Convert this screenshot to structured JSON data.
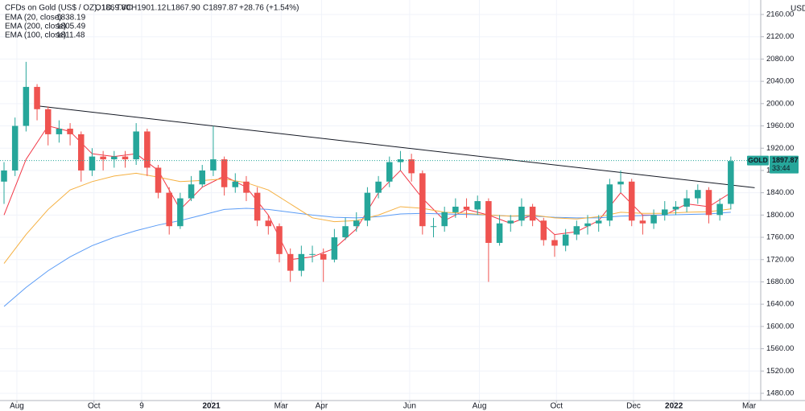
{
  "chart_data": {
    "type": "candlestick",
    "header": {
      "title": "CFDs on Gold (US$ / OZ), 1D, TVC",
      "open": "O1869.80",
      "high": "H1901.12",
      "low": "L1867.90",
      "close": "C1897.87",
      "change": "+28.76 (+1.54%)"
    },
    "currency": "USD",
    "symbol": "GOLD",
    "last_price": 1897.87,
    "countdown": "33:44",
    "xlim": [
      -2.2,
      412.3
    ],
    "ylim": [
      1467,
      2186
    ],
    "grid": true,
    "up_color": "#26a69a",
    "down_color": "#ef5350",
    "xticks": [
      {
        "value": 7,
        "label": "Aug"
      },
      {
        "value": 49,
        "label": "Oct"
      },
      {
        "value": 75,
        "label": "9"
      },
      {
        "value": 113,
        "label": "2021"
      },
      {
        "value": 151,
        "label": "Mar"
      },
      {
        "value": 173,
        "label": "Apr"
      },
      {
        "value": 221,
        "label": "Jun"
      },
      {
        "value": 259,
        "label": "Aug"
      },
      {
        "value": 301,
        "label": "Oct"
      },
      {
        "value": 343,
        "label": "Dec"
      },
      {
        "value": 365,
        "label": "2022"
      },
      {
        "value": 406,
        "label": "Mar"
      }
    ],
    "yticks": [
      {
        "value": 1480,
        "label": "1480.00"
      },
      {
        "value": 1520,
        "label": "1520.00"
      },
      {
        "value": 1560,
        "label": "1560.00"
      },
      {
        "value": 1600,
        "label": "1600.00"
      },
      {
        "value": 1640,
        "label": "1640.00"
      },
      {
        "value": 1680,
        "label": "1680.00"
      },
      {
        "value": 1720,
        "label": "1720.00"
      },
      {
        "value": 1760,
        "label": "1760.00"
      },
      {
        "value": 1800,
        "label": "1800.00"
      },
      {
        "value": 1840,
        "label": "1840.00"
      },
      {
        "value": 1880,
        "label": "1880.00"
      },
      {
        "value": 1920,
        "label": "1920.00"
      },
      {
        "value": 1960,
        "label": "1960.00"
      },
      {
        "value": 2000,
        "label": "2000.00"
      },
      {
        "value": 2040,
        "label": "2040.00"
      },
      {
        "value": 2080,
        "label": "2080.00"
      },
      {
        "value": 2120,
        "label": "2120.00"
      },
      {
        "value": 2160,
        "label": "2160.00"
      }
    ],
    "candles": {
      "x": [
        0,
        6,
        12,
        18,
        24,
        30,
        36,
        42,
        48,
        54,
        60,
        66,
        72,
        78,
        84,
        90,
        96,
        102,
        108,
        114,
        120,
        126,
        132,
        138,
        144,
        150,
        156,
        162,
        168,
        174,
        180,
        186,
        192,
        198,
        204,
        210,
        216,
        222,
        228,
        234,
        240,
        246,
        252,
        258,
        264,
        270,
        276,
        282,
        288,
        294,
        300,
        306,
        312,
        318,
        324,
        330,
        336,
        342,
        348,
        354,
        360,
        366,
        372,
        378,
        384,
        390,
        396
      ],
      "open": [
        1860,
        1880,
        1960,
        2030,
        1990,
        1945,
        1955,
        1945,
        1880,
        1905,
        1900,
        1905,
        1900,
        1950,
        1885,
        1840,
        1780,
        1830,
        1855,
        1880,
        1900,
        1850,
        1860,
        1840,
        1790,
        1780,
        1730,
        1700,
        1730,
        1730,
        1720,
        1760,
        1780,
        1790,
        1840,
        1860,
        1895,
        1900,
        1875,
        1780,
        1780,
        1805,
        1815,
        1810,
        1825,
        1750,
        1785,
        1790,
        1815,
        1790,
        1755,
        1745,
        1765,
        1780,
        1785,
        1790,
        1855,
        1860,
        1790,
        1785,
        1800,
        1810,
        1815,
        1830,
        1845,
        1800,
        1820
      ],
      "high": [
        1895,
        1975,
        2075,
        2035,
        1995,
        1970,
        1965,
        1950,
        1920,
        1915,
        1915,
        1915,
        1965,
        1955,
        1890,
        1850,
        1840,
        1870,
        1890,
        1960,
        1905,
        1875,
        1870,
        1850,
        1800,
        1785,
        1740,
        1745,
        1745,
        1740,
        1775,
        1795,
        1805,
        1850,
        1870,
        1905,
        1915,
        1910,
        1880,
        1795,
        1815,
        1830,
        1830,
        1835,
        1830,
        1800,
        1800,
        1830,
        1820,
        1795,
        1765,
        1775,
        1790,
        1800,
        1800,
        1865,
        1880,
        1865,
        1800,
        1810,
        1825,
        1825,
        1845,
        1855,
        1850,
        1830,
        1905
      ],
      "low": [
        1820,
        1870,
        1950,
        1970,
        1925,
        1930,
        1925,
        1860,
        1870,
        1880,
        1885,
        1885,
        1890,
        1870,
        1830,
        1765,
        1775,
        1825,
        1850,
        1870,
        1835,
        1840,
        1825,
        1780,
        1765,
        1715,
        1680,
        1690,
        1715,
        1680,
        1715,
        1755,
        1770,
        1780,
        1830,
        1850,
        1880,
        1860,
        1765,
        1760,
        1770,
        1795,
        1795,
        1800,
        1680,
        1745,
        1770,
        1780,
        1780,
        1745,
        1725,
        1735,
        1755,
        1765,
        1770,
        1780,
        1840,
        1780,
        1765,
        1775,
        1790,
        1800,
        1805,
        1820,
        1785,
        1790,
        1810
      ],
      "close": [
        1880,
        1960,
        2030,
        1990,
        1945,
        1955,
        1945,
        1880,
        1905,
        1900,
        1905,
        1900,
        1950,
        1885,
        1840,
        1780,
        1830,
        1855,
        1880,
        1900,
        1850,
        1860,
        1840,
        1790,
        1780,
        1730,
        1700,
        1730,
        1730,
        1720,
        1760,
        1780,
        1790,
        1840,
        1860,
        1895,
        1900,
        1875,
        1780,
        1780,
        1805,
        1815,
        1810,
        1825,
        1750,
        1785,
        1790,
        1815,
        1790,
        1755,
        1745,
        1765,
        1780,
        1785,
        1790,
        1855,
        1860,
        1790,
        1785,
        1800,
        1810,
        1815,
        1830,
        1845,
        1800,
        1820,
        1897
      ]
    },
    "indicator_x": [
      0,
      12,
      24,
      36,
      48,
      60,
      72,
      84,
      96,
      108,
      120,
      132,
      144,
      156,
      168,
      180,
      192,
      204,
      216,
      228,
      240,
      252,
      264,
      276,
      288,
      300,
      312,
      324,
      336,
      348,
      360,
      372,
      384,
      396
    ],
    "series": [
      {
        "name": "EMA (20, close)",
        "last": 1838.19,
        "color": "#f23645",
        "values": [
          1800,
          1900,
          1960,
          1950,
          1910,
          1905,
          1910,
          1880,
          1810,
          1850,
          1870,
          1850,
          1800,
          1720,
          1725,
          1740,
          1775,
          1840,
          1880,
          1830,
          1790,
          1810,
          1800,
          1785,
          1800,
          1765,
          1770,
          1790,
          1840,
          1800,
          1800,
          1820,
          1815,
          1840
        ]
      },
      {
        "name": "EMA (200, close)",
        "last": 1805.49,
        "color": "#5b9cf6",
        "values": [
          1636,
          1670,
          1700,
          1725,
          1745,
          1760,
          1772,
          1782,
          1790,
          1800,
          1810,
          1812,
          1810,
          1805,
          1800,
          1796,
          1795,
          1797,
          1802,
          1803,
          1802,
          1801,
          1800,
          1798,
          1798,
          1796,
          1795,
          1795,
          1798,
          1799,
          1800,
          1801,
          1802,
          1805
        ]
      },
      {
        "name": "EMA (100, close)",
        "last": 1811.48,
        "color": "#f5b041",
        "values": [
          1713,
          1765,
          1810,
          1845,
          1860,
          1870,
          1875,
          1868,
          1860,
          1862,
          1865,
          1858,
          1845,
          1820,
          1795,
          1788,
          1790,
          1800,
          1815,
          1812,
          1805,
          1803,
          1800,
          1798,
          1800,
          1795,
          1793,
          1797,
          1805,
          1803,
          1803,
          1805,
          1806,
          1811
        ]
      }
    ],
    "trendline": {
      "x": [
        18,
        409
      ],
      "values": [
        1996,
        1849
      ],
      "color": "#131722"
    }
  }
}
